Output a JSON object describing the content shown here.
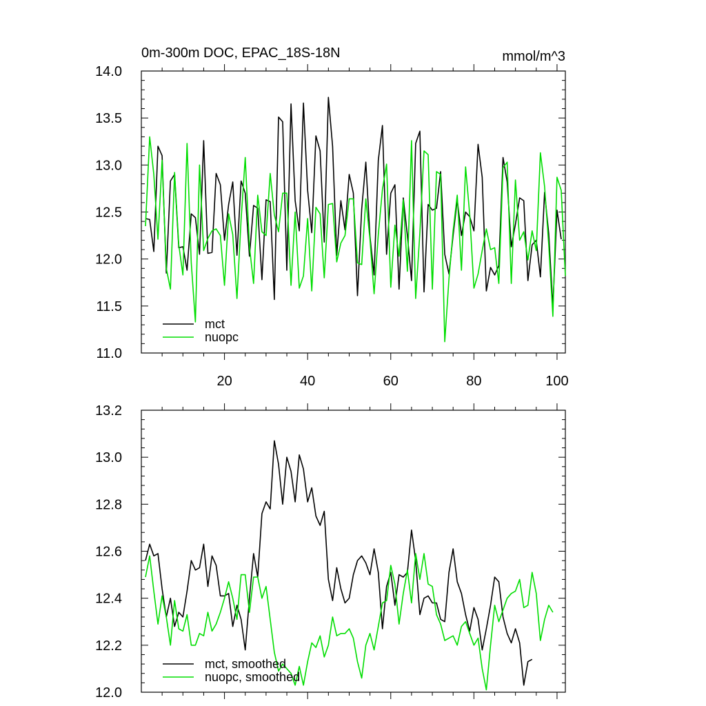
{
  "charts": {
    "top": {
      "title_left": "0m-300m DOC, EPAC_18S-18N",
      "title_right": "mmol/m^3",
      "legend": {
        "mct": "mct",
        "nuopc": "nuopc"
      }
    },
    "bottom": {
      "legend": {
        "mct": "mct, smoothed",
        "nuopc": "nuopc, smoothed"
      }
    }
  },
  "colors": {
    "mct": "#000000",
    "nuopc": "#00dd00"
  },
  "chart_data": [
    {
      "type": "line",
      "title": "0m-300m DOC, EPAC_18S-18N",
      "units_label": "mmol/m^3",
      "xlim": [
        0,
        102
      ],
      "ylim": [
        11.0,
        14.0
      ],
      "x_ticks": [
        20,
        40,
        60,
        80,
        100
      ],
      "y_ticks": [
        "11.0",
        "11.5",
        "12.0",
        "12.5",
        "13.0",
        "13.5",
        "14.0"
      ],
      "y_tick_values": [
        11.0,
        11.5,
        12.0,
        12.5,
        13.0,
        13.5,
        14.0
      ],
      "legend_position": "lower-left",
      "x_start": 1,
      "series": [
        {
          "name": "mct",
          "color": "#000000",
          "values": [
            12.43,
            12.42,
            12.08,
            13.2,
            13.1,
            11.85,
            12.83,
            12.9,
            12.12,
            12.13,
            11.88,
            12.48,
            12.44,
            12.05,
            13.26,
            12.06,
            12.07,
            12.91,
            12.79,
            12.2,
            12.58,
            12.82,
            12.04,
            12.83,
            12.7,
            12.03,
            12.57,
            12.54,
            11.78,
            12.63,
            12.61,
            11.57,
            13.51,
            13.46,
            11.88,
            13.65,
            12.62,
            12.3,
            13.66,
            12.73,
            12.28,
            13.31,
            13.15,
            12.18,
            13.72,
            13.2,
            12.04,
            12.62,
            12.31,
            12.9,
            12.7,
            11.61,
            12.53,
            13.03,
            12.24,
            11.83,
            13.05,
            13.42,
            12.05,
            12.7,
            12.79,
            11.68,
            12.65,
            12.25,
            11.77,
            13.23,
            13.36,
            11.65,
            12.58,
            12.52,
            12.54,
            12.93,
            12.05,
            11.84,
            12.25,
            12.63,
            12.25,
            12.5,
            12.45,
            12.3,
            13.22,
            12.87,
            11.66,
            11.91,
            11.83,
            11.93,
            13.08,
            12.82,
            12.13,
            12.37,
            12.65,
            12.62,
            11.77,
            12.15,
            12.2,
            11.81,
            12.71,
            12.27,
            11.49,
            12.52,
            12.21
          ]
        },
        {
          "name": "nuopc",
          "color": "#00dd00",
          "values": [
            12.35,
            13.3,
            12.9,
            12.21,
            13.05,
            11.9,
            11.68,
            12.92,
            12.15,
            11.83,
            13.23,
            11.96,
            11.33,
            13.0,
            12.09,
            12.22,
            12.3,
            12.32,
            12.25,
            11.72,
            12.48,
            12.26,
            11.58,
            12.42,
            13.08,
            12.13,
            11.74,
            12.68,
            12.29,
            12.25,
            12.91,
            12.47,
            12.29,
            12.7,
            12.7,
            11.72,
            12.5,
            11.69,
            11.82,
            12.43,
            11.66,
            12.55,
            12.48,
            11.8,
            12.58,
            12.59,
            11.97,
            12.17,
            12.25,
            12.64,
            12.64,
            11.96,
            11.94,
            12.64,
            12.21,
            11.63,
            12.26,
            12.74,
            13.01,
            11.7,
            12.36,
            12.03,
            12.63,
            11.87,
            13.26,
            11.58,
            12.28,
            13.15,
            13.11,
            11.68,
            12.93,
            12.9,
            11.12,
            11.79,
            12.3,
            12.68,
            11.88,
            12.98,
            12.47,
            11.69,
            11.84,
            12.09,
            12.32,
            12.1,
            12.12,
            11.74,
            12.97,
            13.03,
            11.74,
            12.84,
            12.2,
            12.29,
            11.99,
            12.3,
            12.09,
            13.13,
            12.77,
            12.15,
            11.39,
            12.87,
            12.73,
            11.82
          ]
        }
      ]
    },
    {
      "type": "line",
      "xlim": [
        0,
        102
      ],
      "ylim": [
        12.0,
        13.2
      ],
      "y_ticks": [
        "12.0",
        "12.2",
        "12.4",
        "12.6",
        "12.8",
        "13.0",
        "13.2"
      ],
      "y_tick_values": [
        12.0,
        12.2,
        12.4,
        12.6,
        12.8,
        13.0,
        13.2
      ],
      "legend_position": "lower-left",
      "x_start": 1,
      "series": [
        {
          "name": "mct, smoothed",
          "color": "#000000",
          "values": [
            12.56,
            12.63,
            12.58,
            12.59,
            12.44,
            12.32,
            12.4,
            12.28,
            12.34,
            12.32,
            12.43,
            12.56,
            12.52,
            12.53,
            12.63,
            12.45,
            12.58,
            12.54,
            12.41,
            12.41,
            12.42,
            12.28,
            12.37,
            12.31,
            12.18,
            12.4,
            12.59,
            12.49,
            12.76,
            12.81,
            12.78,
            13.07,
            12.97,
            12.8,
            13.0,
            12.94,
            12.81,
            13.01,
            12.95,
            12.81,
            12.87,
            12.75,
            12.71,
            12.77,
            12.48,
            12.39,
            12.53,
            12.44,
            12.38,
            12.4,
            12.5,
            12.56,
            12.58,
            12.55,
            12.5,
            12.61,
            12.51,
            12.27,
            12.45,
            12.51,
            12.37,
            12.5,
            12.49,
            12.51,
            12.69,
            12.56,
            12.33,
            12.4,
            12.41,
            12.38,
            12.38,
            12.31,
            12.3,
            12.51,
            12.61,
            12.47,
            12.42,
            12.33,
            12.26,
            12.36,
            12.31,
            12.18,
            12.27,
            12.37,
            12.49,
            12.47,
            12.32,
            12.25,
            12.21,
            12.27,
            12.21,
            12.03,
            12.13,
            12.14
          ]
        },
        {
          "name": "nuopc, smoothed",
          "color": "#00dd00",
          "values": [
            12.49,
            12.58,
            12.43,
            12.29,
            12.41,
            12.32,
            12.2,
            12.39,
            12.27,
            12.26,
            12.33,
            12.2,
            12.2,
            12.25,
            12.24,
            12.34,
            12.26,
            12.29,
            12.34,
            12.4,
            12.47,
            12.4,
            12.31,
            12.5,
            12.5,
            12.34,
            12.49,
            12.49,
            12.4,
            12.45,
            12.31,
            12.17,
            12.09,
            12.12,
            12.1,
            12.08,
            12.03,
            12.11,
            12.03,
            12.13,
            12.21,
            12.19,
            12.24,
            12.15,
            12.2,
            12.32,
            12.24,
            12.25,
            12.25,
            12.27,
            12.23,
            12.13,
            12.06,
            12.2,
            12.25,
            12.18,
            12.28,
            12.38,
            12.39,
            12.54,
            12.46,
            12.29,
            12.42,
            12.52,
            12.38,
            12.59,
            12.48,
            12.59,
            12.46,
            12.45,
            12.33,
            12.29,
            12.22,
            12.23,
            12.24,
            12.2,
            12.28,
            12.3,
            12.25,
            12.2,
            12.23,
            12.1,
            12.01,
            12.2,
            12.37,
            12.3,
            12.35,
            12.4,
            12.42,
            12.43,
            12.48,
            12.36,
            12.37,
            12.51,
            12.42,
            12.22,
            12.31,
            12.37,
            12.34
          ]
        }
      ]
    }
  ]
}
